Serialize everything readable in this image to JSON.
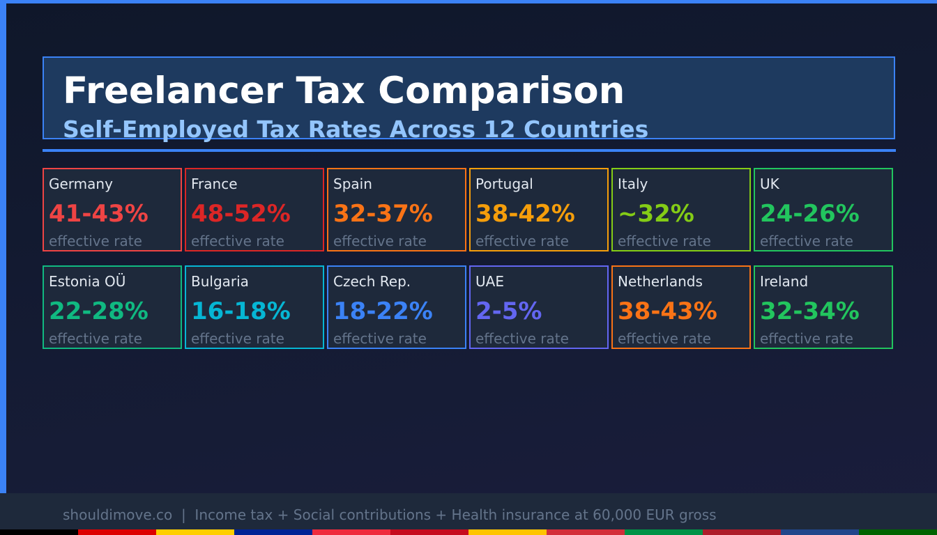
{
  "header": {
    "title": "Freelancer Tax Comparison",
    "subtitle": "Self-Employed Tax Rates Across 12 Countries"
  },
  "cards": [
    {
      "country": "Germany",
      "rate": "41-43%",
      "label": "effective rate",
      "color": "#ef4444"
    },
    {
      "country": "France",
      "rate": "48-52%",
      "label": "effective rate",
      "color": "#dc2626"
    },
    {
      "country": "Spain",
      "rate": "32-37%",
      "label": "effective rate",
      "color": "#f97316"
    },
    {
      "country": "Portugal",
      "rate": "38-42%",
      "label": "effective rate",
      "color": "#f59e0b"
    },
    {
      "country": "Italy",
      "rate": "~32%",
      "label": "effective rate",
      "color": "#84cc16"
    },
    {
      "country": "UK",
      "rate": "24-26%",
      "label": "effective rate",
      "color": "#22c55e"
    },
    {
      "country": "Estonia OÜ",
      "rate": "22-28%",
      "label": "effective rate",
      "color": "#10b981"
    },
    {
      "country": "Bulgaria",
      "rate": "16-18%",
      "label": "effective rate",
      "color": "#06b6d4"
    },
    {
      "country": "Czech Rep.",
      "rate": "18-22%",
      "label": "effective rate",
      "color": "#3b82f6"
    },
    {
      "country": "UAE",
      "rate": "2-5%",
      "label": "effective rate",
      "color": "#6366f1"
    },
    {
      "country": "Netherlands",
      "rate": "38-43%",
      "label": "effective rate",
      "color": "#f97316"
    },
    {
      "country": "Ireland",
      "rate": "32-34%",
      "label": "effective rate",
      "color": "#22c55e"
    }
  ],
  "footer": {
    "text": "shouldimove.co  |  Income tax + Social contributions + Health insurance at 60,000 EUR gross"
  },
  "flag_colors": [
    "#000000",
    "#dd0000",
    "#ffce00",
    "#002395",
    "#ef2b3d",
    "#c60b1e",
    "#ffc400",
    "#d32f3a",
    "#009246",
    "#ad1d2a",
    "#21468b",
    "#006400"
  ]
}
